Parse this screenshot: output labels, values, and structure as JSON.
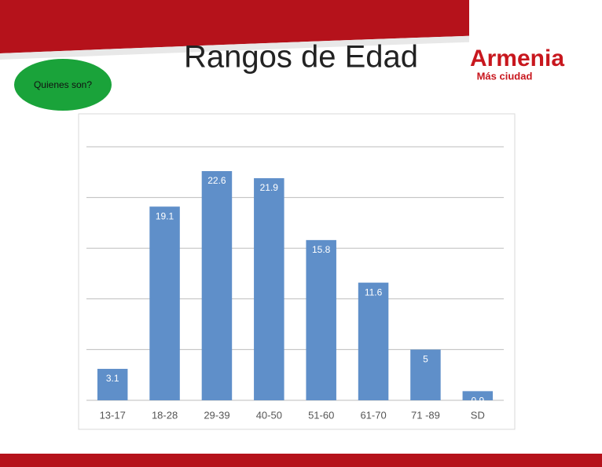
{
  "header": {
    "badge": "Quienes son?",
    "logo_title": "Armenia",
    "logo_subtitle": "Más ciudad"
  },
  "chart_data": {
    "type": "bar",
    "title": "Rangos de Edad",
    "categories": [
      "13-17",
      "18-28",
      "29-39",
      "40-50",
      "51-60",
      "61-70",
      "71 -89",
      "SD"
    ],
    "values": [
      3.1,
      19.1,
      22.6,
      21.9,
      15.8,
      11.6,
      5,
      0.9
    ],
    "color": "#5f8fc9",
    "ylim": [
      0,
      25
    ],
    "yticks": [
      0,
      5,
      10,
      15,
      20,
      25
    ],
    "grid": true
  }
}
